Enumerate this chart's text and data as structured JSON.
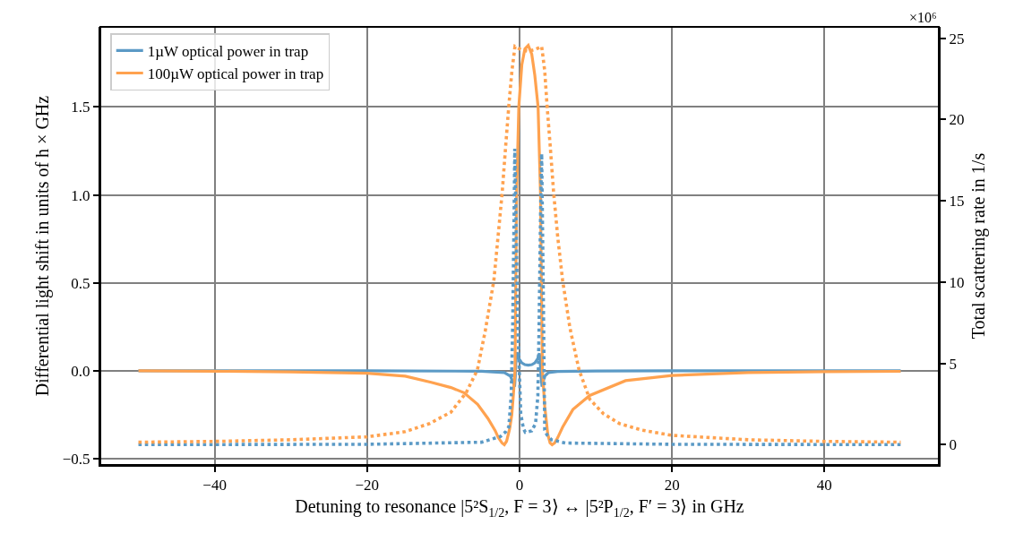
{
  "chart_data": {
    "type": "line",
    "xlabel": "Detuning to resonance |5²S$_{1/2}$, F = 3⟩ ↔ |5²P$_{1/2}$, F′ = 3⟩ in GHz",
    "ylabel": "Differential light shift in units of h × GHz",
    "y2label": "Total scattering rate in 1/s",
    "annotations": [
      "×10⁶"
    ],
    "xlim": [
      -55,
      55
    ],
    "xticks": [
      {
        "value": -40,
        "label": "−40"
      },
      {
        "value": -20,
        "label": "−20"
      },
      0,
      20,
      40
    ],
    "ylim": [
      -0.535,
      1.955
    ],
    "yticks": [
      {
        "value": -0.5,
        "label": "−0.5"
      },
      {
        "value": 0,
        "label": "0.0"
      },
      {
        "value": 0.5,
        "label": "0.5"
      },
      {
        "value": 1,
        "label": "1.0"
      },
      {
        "value": 1.5,
        "label": "1.5"
      }
    ],
    "y2lim": [
      -1.25,
      25.7
    ],
    "y2ticks": [
      0,
      5,
      10,
      15,
      20,
      25
    ],
    "grid": true,
    "legend": "top left",
    "series": [
      {
        "name": "1µW optical power in trap",
        "color": "#5b9ac6",
        "line_style": "solid",
        "x": [
          -50,
          -20,
          -5,
          -2,
          -1.2,
          -0.8,
          -0.65,
          -0.55,
          -0.45,
          -0.35,
          -0.1,
          0.3,
          0.7,
          1.14,
          1.6,
          2.0,
          2.4,
          2.6,
          2.7,
          2.8,
          2.95,
          3.05,
          3.3,
          3.8,
          5,
          10,
          20,
          50
        ],
        "values": [
          0,
          0,
          -0.002,
          -0.01,
          -0.03,
          -0.07,
          -0.09,
          -0.02,
          0.08,
          0.105,
          0.07,
          0.045,
          0.035,
          0.032,
          0.035,
          0.045,
          0.07,
          0.1,
          0.06,
          -0.02,
          -0.09,
          -0.07,
          -0.03,
          -0.01,
          -0.004,
          -0.001,
          0,
          0
        ]
      },
      {
        "name": "100µW optical power in trap",
        "color": "#ffa24f",
        "line_style": "solid",
        "x": [
          -50,
          -40,
          -30,
          -20,
          -15,
          -11.6,
          -9,
          -7.3,
          -5.5,
          -4.16,
          -3.2,
          -2.78,
          -2.3,
          -2.0,
          -1.7,
          -1.3,
          -1.02,
          -0.8,
          -0.6,
          -0.5,
          -0.39,
          -0.1,
          0.3,
          0.7,
          1.14,
          1.6,
          2.0,
          2.43,
          2.75,
          2.86,
          3.0,
          3.3,
          3.7,
          4.0,
          4.27,
          4.6,
          5.0,
          5.65,
          7,
          9.2,
          13.9,
          20,
          30,
          40,
          50
        ],
        "values": [
          0,
          -0.002,
          -0.006,
          -0.014,
          -0.03,
          -0.065,
          -0.095,
          -0.124,
          -0.19,
          -0.27,
          -0.34,
          -0.38,
          -0.41,
          -0.42,
          -0.4,
          -0.33,
          -0.25,
          -0.13,
          0.0,
          0.5,
          1.0,
          1.5,
          1.74,
          1.83,
          1.85,
          1.8,
          1.68,
          1.5,
          1.0,
          0.5,
          0.0,
          -0.2,
          -0.36,
          -0.41,
          -0.42,
          -0.41,
          -0.38,
          -0.32,
          -0.22,
          -0.14,
          -0.056,
          -0.026,
          -0.01,
          -0.005,
          -0.003
        ]
      },
      {
        "color": "#5b9ac6",
        "line_style": "dotted",
        "axis": "y2",
        "x": [
          -50,
          -20,
          -5,
          -2.5,
          -1.8,
          -1.41,
          -1.1,
          -0.9,
          -0.7,
          -0.63,
          -0.5,
          -0.24,
          0.16,
          0.5,
          0.75,
          1.14,
          1.6,
          2.1,
          2.4,
          2.55,
          2.75,
          2.9,
          3.1,
          3.3,
          3.6,
          4.2,
          6,
          20,
          50
        ],
        "values": [
          0,
          0.02,
          0.15,
          0.5,
          0.8,
          1.1,
          3,
          7.4,
          14.9,
          18.2,
          15,
          7.4,
          1.9,
          1.0,
          0.76,
          0.8,
          0.85,
          1.3,
          3,
          7,
          14,
          17.9,
          10,
          0.9,
          0.6,
          0.3,
          0.1,
          0.02,
          0
        ]
      },
      {
        "color": "#ffa24f",
        "line_style": "dotted",
        "axis": "y2",
        "x": [
          -50,
          -40,
          -30,
          -20,
          -15,
          -11.8,
          -9,
          -7,
          -5.53,
          -4.5,
          -3.37,
          -2.8,
          -2.28,
          -1.8,
          -1.4,
          -1.0,
          -0.6,
          0.2,
          1.14,
          2.0,
          2.9,
          3.3,
          3.6,
          4.0,
          4.47,
          5.0,
          5.65,
          6.6,
          7.8,
          9.2,
          11,
          13.1,
          16,
          20,
          30,
          40,
          50
        ],
        "values": [
          0.15,
          0.2,
          0.3,
          0.48,
          0.8,
          1.3,
          2.0,
          3.2,
          4.6,
          7.0,
          10.1,
          12.9,
          15.5,
          18.5,
          20.9,
          23,
          24.5,
          24.3,
          24.2,
          24.3,
          24.5,
          23,
          20.9,
          18.5,
          15.5,
          12.8,
          10.1,
          7.2,
          4.6,
          2.8,
          1.9,
          1.3,
          0.9,
          0.57,
          0.3,
          0.2,
          0.15
        ]
      }
    ]
  }
}
